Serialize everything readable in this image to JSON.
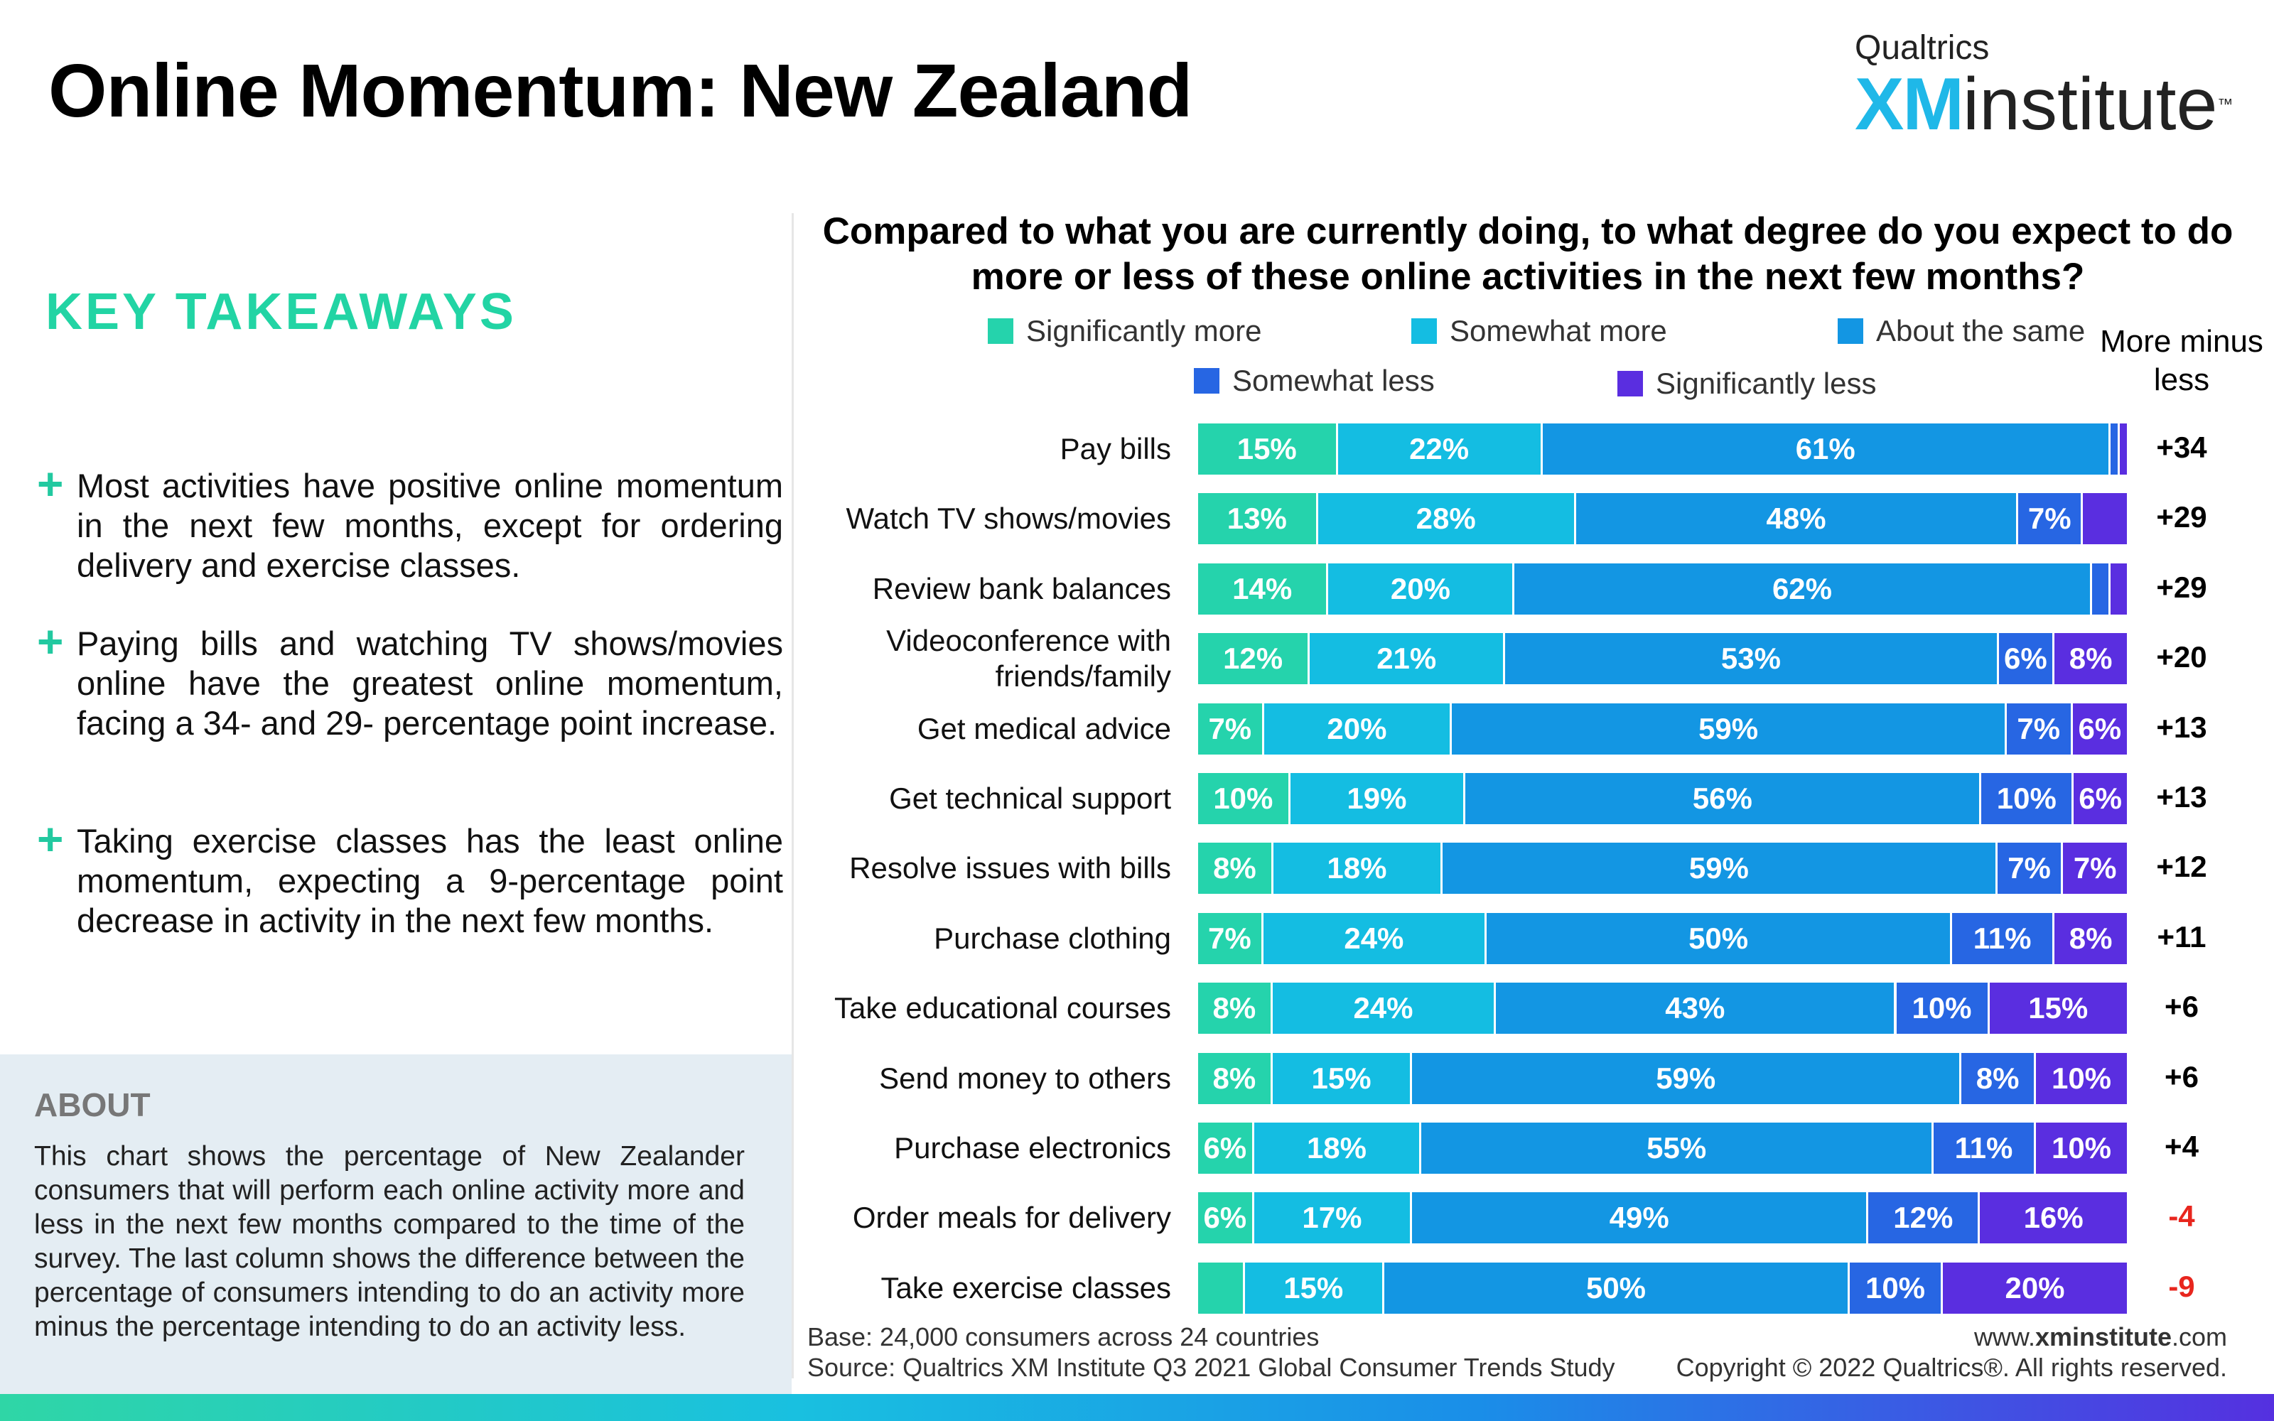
{
  "header": {
    "title": "Online Momentum: New Zealand",
    "brand_small": "Qualtrics",
    "brand_xm": "XM",
    "brand_institute": "institute",
    "brand_tm": "™"
  },
  "takeaways": {
    "heading": "KEY TAKEAWAYS",
    "items": [
      "Most activities have positive online momentum in the next few months, except for ordering delivery and exercise classes.",
      "Paying bills and watching TV shows/movies online have the greatest online momentum, facing a 34- and 29- percentage point increase.",
      "Taking exercise classes has the least online momentum, expecting a 9-percentage point decrease in activity in the next few months."
    ]
  },
  "about": {
    "heading": "ABOUT",
    "text": "This chart shows the percentage of New Zealander consumers that will perform each online activity more and less in the next few months compared to the time of the survey. The last column shows the difference between the percentage of consumers intending to do an activity more minus the percentage intending to do an activity less."
  },
  "chart_data": {
    "type": "bar",
    "orientation": "horizontal",
    "stacked": true,
    "title": "Compared to what you are currently doing, to what degree do you expect to do more or less of these online activities in the next few months?",
    "net_label": "More minus less",
    "colors": [
      "#25d3ac",
      "#14bde2",
      "#1396e3",
      "#2766e3",
      "#5a2ee0"
    ],
    "categories": [
      "Pay bills",
      "Watch TV shows/movies",
      "Review bank balances",
      "Videoconference with friends/family",
      "Get medical advice",
      "Get technical support",
      "Resolve issues with bills",
      "Purchase clothing",
      "Take educational courses",
      "Send money to others",
      "Purchase electronics",
      "Order meals for delivery",
      "Take exercise classes"
    ],
    "series": [
      {
        "name": "Significantly more",
        "values": [
          15,
          13,
          14,
          12,
          7,
          10,
          8,
          7,
          8,
          8,
          6,
          6,
          5
        ]
      },
      {
        "name": "Somewhat more",
        "values": [
          22,
          28,
          20,
          21,
          20,
          19,
          18,
          24,
          24,
          15,
          18,
          17,
          15
        ]
      },
      {
        "name": "About the same",
        "values": [
          61,
          48,
          62,
          53,
          59,
          56,
          59,
          50,
          43,
          59,
          55,
          49,
          50
        ]
      },
      {
        "name": "Somewhat less",
        "values": [
          1,
          7,
          2,
          6,
          7,
          10,
          7,
          11,
          10,
          8,
          11,
          12,
          10
        ]
      },
      {
        "name": "Significantly less",
        "values": [
          1,
          5,
          2,
          8,
          6,
          6,
          7,
          8,
          15,
          10,
          10,
          16,
          20
        ]
      }
    ],
    "net": [
      "+34",
      "+29",
      "+29",
      "+20",
      "+13",
      "+13",
      "+12",
      "+11",
      "+6",
      "+6",
      "+4",
      "-4",
      "-9"
    ]
  },
  "footer": {
    "base": "Base: 24,000 consumers across 24 countries",
    "source": "Source: Qualtrics XM Institute Q3 2021 Global Consumer Trends Study",
    "url_prefix": "www.",
    "url_bold": "xminstitute",
    "url_suffix": ".com",
    "copyright": "Copyright © 2022 Qualtrics®. All rights reserved."
  }
}
